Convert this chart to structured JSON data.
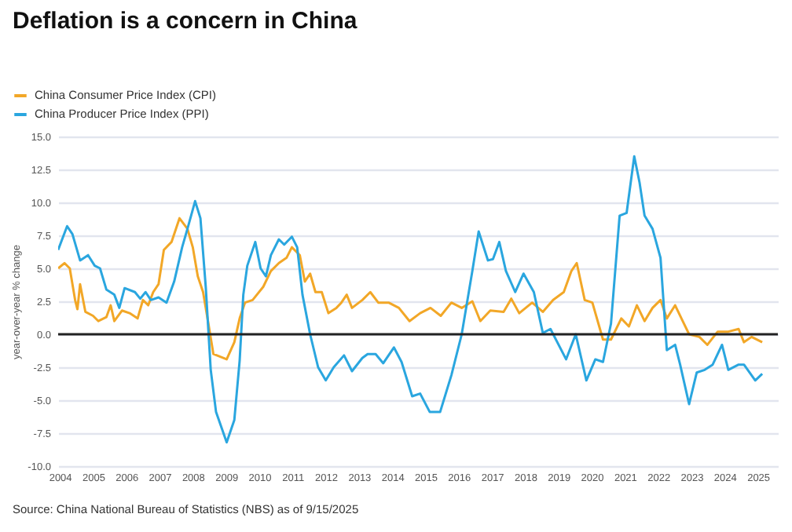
{
  "chart_data": {
    "type": "line",
    "title": "Deflation is a concern in China",
    "ylabel": "year-over-year % change",
    "annotations": [
      "Source: China National Bureau of Statistics (NBS) as of 9/15/2025"
    ],
    "xlim": [
      2003.95,
      2025.6
    ],
    "xticks": [
      2004,
      2005,
      2006,
      2007,
      2008,
      2009,
      2010,
      2011,
      2012,
      2013,
      2014,
      2015,
      2016,
      2017,
      2018,
      2019,
      2020,
      2021,
      2022,
      2023,
      2024,
      2025
    ],
    "ylim": [
      -10,
      15
    ],
    "yticks": [
      {
        "value": -10,
        "label": "-10.0"
      },
      {
        "value": -7.5,
        "label": "-7.5"
      },
      {
        "value": -5,
        "label": "-5.0"
      },
      {
        "value": -2.5,
        "label": "-2.5"
      },
      {
        "value": 0,
        "label": "0.0"
      },
      {
        "value": 2.5,
        "label": "2.5"
      },
      {
        "value": 5,
        "label": "5.0"
      },
      {
        "value": 7.5,
        "label": "7.5"
      },
      {
        "value": 10,
        "label": "10.0"
      },
      {
        "value": 12.5,
        "label": "12.5"
      },
      {
        "value": 15,
        "label": "15.0"
      }
    ],
    "grid": "y",
    "legend": "top left",
    "ref_lines": [
      {
        "axis": "y",
        "value": 0,
        "color": "#222222"
      }
    ],
    "series": [
      {
        "name": "China Consumer Price Index (CPI)",
        "color": "#f2a727",
        "x": [
          2003.95,
          2004.14,
          2004.3,
          2004.46,
          2004.53,
          2004.61,
          2004.77,
          2005.0,
          2005.16,
          2005.4,
          2005.53,
          2005.64,
          2005.87,
          2006.1,
          2006.34,
          2006.5,
          2006.66,
          2006.81,
          2006.97,
          2007.13,
          2007.36,
          2007.6,
          2007.84,
          2008.0,
          2008.15,
          2008.31,
          2008.47,
          2008.62,
          2009.02,
          2009.25,
          2009.41,
          2009.57,
          2009.8,
          2010.12,
          2010.35,
          2010.59,
          2010.82,
          2010.98,
          2011.22,
          2011.37,
          2011.53,
          2011.69,
          2011.88,
          2012.08,
          2012.32,
          2012.47,
          2012.63,
          2012.79,
          2013.1,
          2013.34,
          2013.58,
          2013.89,
          2014.2,
          2014.52,
          2014.84,
          2015.15,
          2015.46,
          2015.78,
          2016.09,
          2016.41,
          2016.65,
          2016.95,
          2017.35,
          2017.58,
          2017.82,
          2018.21,
          2018.53,
          2018.84,
          2019.16,
          2019.39,
          2019.55,
          2019.79,
          2020.02,
          2020.34,
          2020.58,
          2020.89,
          2021.12,
          2021.36,
          2021.59,
          2021.83,
          2022.07,
          2022.26,
          2022.51,
          2022.7,
          2022.93,
          2023.24,
          2023.48,
          2023.79,
          2024.11,
          2024.42,
          2024.58,
          2024.81,
          2025.13
        ],
        "values": [
          5.0,
          5.4,
          5.0,
          2.6,
          1.9,
          3.8,
          1.7,
          1.4,
          1.0,
          1.3,
          2.2,
          1.0,
          1.8,
          1.6,
          1.2,
          2.6,
          2.2,
          3.2,
          3.8,
          6.4,
          7.0,
          8.8,
          8.0,
          6.6,
          4.4,
          3.2,
          0.8,
          -1.5,
          -1.9,
          -0.6,
          1.2,
          2.4,
          2.6,
          3.6,
          4.8,
          5.4,
          5.8,
          6.6,
          6.0,
          4.0,
          4.6,
          3.2,
          3.2,
          1.6,
          2.0,
          2.4,
          3.0,
          2.0,
          2.6,
          3.2,
          2.4,
          2.4,
          2.0,
          1.0,
          1.6,
          2.0,
          1.4,
          2.4,
          2.0,
          2.5,
          1.0,
          1.8,
          1.7,
          2.7,
          1.6,
          2.4,
          1.7,
          2.6,
          3.2,
          4.8,
          5.4,
          2.6,
          2.4,
          -0.4,
          -0.4,
          1.2,
          0.6,
          2.2,
          1.0,
          2.0,
          2.6,
          1.2,
          2.2,
          1.2,
          0.0,
          -0.2,
          -0.8,
          0.2,
          0.2,
          0.4,
          -0.6,
          -0.2,
          -0.6
        ]
      },
      {
        "name": "China Producer Price Index (PPI)",
        "color": "#2aa6df",
        "x": [
          2003.95,
          2004.22,
          2004.38,
          2004.61,
          2004.85,
          2005.05,
          2005.21,
          2005.4,
          2005.64,
          2005.79,
          2005.95,
          2006.26,
          2006.42,
          2006.58,
          2006.74,
          2006.97,
          2007.21,
          2007.44,
          2007.68,
          2007.84,
          2008.07,
          2008.23,
          2008.39,
          2008.54,
          2008.7,
          2009.02,
          2009.25,
          2009.41,
          2009.52,
          2009.64,
          2009.88,
          2010.04,
          2010.2,
          2010.35,
          2010.59,
          2010.75,
          2010.98,
          2011.14,
          2011.3,
          2011.53,
          2011.77,
          2012.0,
          2012.24,
          2012.55,
          2012.79,
          2013.1,
          2013.26,
          2013.5,
          2013.73,
          2014.05,
          2014.28,
          2014.6,
          2014.84,
          2015.13,
          2015.44,
          2015.78,
          2016.09,
          2016.41,
          2016.6,
          2016.88,
          2017.03,
          2017.22,
          2017.42,
          2017.7,
          2017.95,
          2018.26,
          2018.53,
          2018.76,
          2019.23,
          2019.52,
          2019.84,
          2020.11,
          2020.34,
          2020.58,
          2020.84,
          2021.05,
          2021.28,
          2021.44,
          2021.59,
          2021.83,
          2022.07,
          2022.26,
          2022.51,
          2022.66,
          2022.93,
          2023.16,
          2023.4,
          2023.64,
          2023.92,
          2024.11,
          2024.42,
          2024.58,
          2024.92,
          2025.13
        ],
        "values": [
          6.4,
          8.2,
          7.6,
          5.6,
          6.0,
          5.2,
          5.0,
          3.4,
          3.0,
          2.0,
          3.5,
          3.2,
          2.7,
          3.2,
          2.6,
          2.8,
          2.4,
          4.0,
          6.6,
          8.0,
          10.1,
          8.8,
          3.6,
          -2.7,
          -5.9,
          -8.2,
          -6.5,
          -2.0,
          3.0,
          5.2,
          7.0,
          5.0,
          4.4,
          6.0,
          7.2,
          6.8,
          7.4,
          6.6,
          3.0,
          0.0,
          -2.5,
          -3.5,
          -2.5,
          -1.6,
          -2.8,
          -1.8,
          -1.5,
          -1.5,
          -2.2,
          -1.0,
          -2.1,
          -4.7,
          -4.5,
          -5.9,
          -5.9,
          -3.1,
          0.0,
          4.8,
          7.8,
          5.6,
          5.7,
          7.0,
          4.8,
          3.2,
          4.6,
          3.2,
          0.1,
          0.4,
          -1.9,
          0.0,
          -3.5,
          -1.9,
          -2.1,
          0.8,
          9.0,
          9.2,
          13.5,
          11.5,
          9.0,
          8.0,
          5.8,
          -1.2,
          -0.8,
          -2.3,
          -5.3,
          -2.9,
          -2.7,
          -2.3,
          -0.8,
          -2.7,
          -2.3,
          -2.3,
          -3.5,
          -3.0
        ]
      }
    ]
  }
}
